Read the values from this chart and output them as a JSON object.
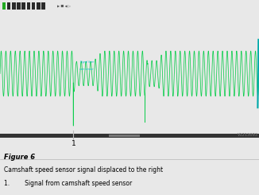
{
  "oscilloscope_bg": "#030a05",
  "signal_color": "#00cc44",
  "signal_color_dim": "#006622",
  "cyan_color": "#00bbcc",
  "annotation_line_color": "#cccccc",
  "annotation_number": "1",
  "watermark": "V1213093",
  "figure_label": "Figure 6",
  "caption": "Camshaft speed sensor signal displaced to the right",
  "bullet1": "1.        Signal from camshaft speed sensor",
  "toolbar_icons": [
    "#22aa22",
    "#2a2a2a",
    "#2a2a2a",
    "#2a2a2a",
    "#2a2a2a",
    "#2a2a2a",
    "#2a2a2a",
    "#2a2a2a",
    "#2a2a2a"
  ],
  "right_indicator_color": "#00aaaa",
  "scrollbar_bg": "#111111",
  "scrollbar_thumb": "#888888",
  "outer_bg": "#e8e8e8"
}
